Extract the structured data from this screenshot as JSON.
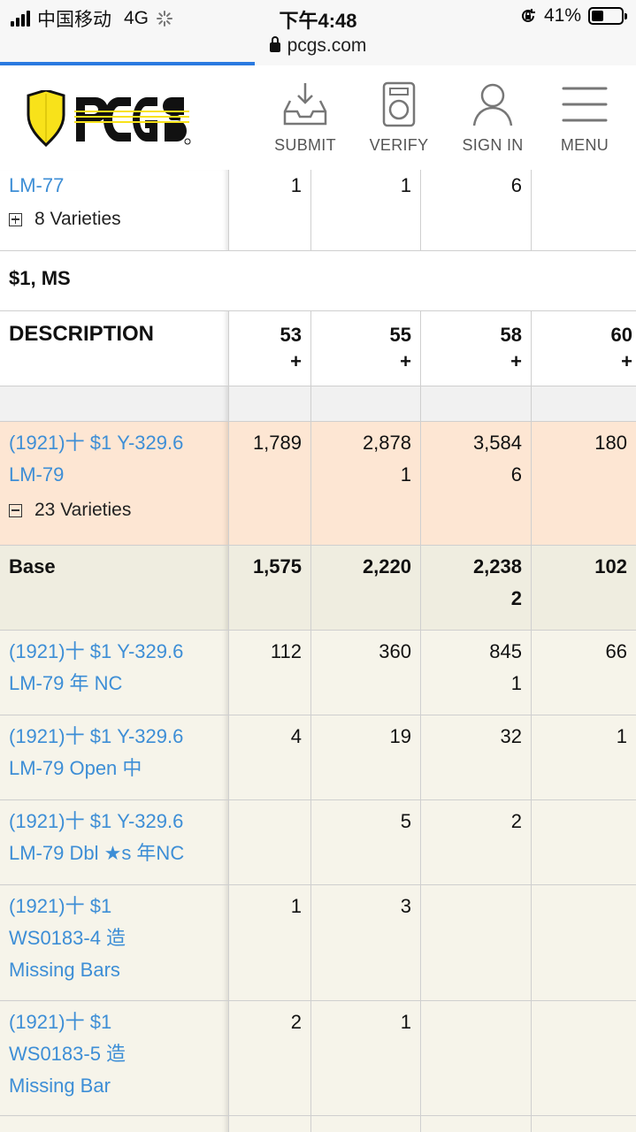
{
  "status_bar": {
    "carrier": "中国移动",
    "network": "4G",
    "time": "下午4:48",
    "battery": "41%",
    "battery_level": 0.41
  },
  "browser": {
    "url": "pcgs.com",
    "load_progress": 0.4
  },
  "header": {
    "logo_text": "PCGS",
    "nav": [
      {
        "label": "SUBMIT",
        "icon": "inbox-download-icon"
      },
      {
        "label": "VERIFY",
        "icon": "coin-slab-icon"
      },
      {
        "label": "SIGN IN",
        "icon": "user-icon"
      },
      {
        "label": "MENU",
        "icon": "hamburger-menu-icon"
      }
    ]
  },
  "prev_section": {
    "row": {
      "desc": "LM-77",
      "values": [
        "1",
        "1",
        "6",
        ""
      ],
      "varieties": "8 Varieties"
    }
  },
  "section": {
    "title": "$1, MS",
    "header": {
      "description": "DESCRIPTION",
      "grades": [
        [
          "53",
          "+"
        ],
        [
          "55",
          "+"
        ],
        [
          "58",
          "+"
        ],
        [
          "60",
          "+"
        ]
      ]
    },
    "rows": [
      {
        "type": "group",
        "desc": [
          "(1921)十 $1 Y-329.6",
          "LM-79"
        ],
        "varieties": "23 Varieties",
        "values": [
          [
            "1,789"
          ],
          [
            "2,878",
            "1"
          ],
          [
            "3,584",
            "6"
          ],
          [
            "180"
          ]
        ]
      },
      {
        "type": "base",
        "desc": [
          "Base"
        ],
        "values": [
          [
            "1,575"
          ],
          [
            "2,220"
          ],
          [
            "2,238",
            "2"
          ],
          [
            "102"
          ]
        ]
      },
      {
        "type": "variety",
        "desc": [
          "(1921)十 $1 Y-329.6",
          "LM-79 年 NC"
        ],
        "values": [
          [
            "112"
          ],
          [
            "360"
          ],
          [
            "845",
            "1"
          ],
          [
            "66"
          ]
        ]
      },
      {
        "type": "variety",
        "desc": [
          "(1921)十 $1 Y-329.6",
          "LM-79 Open 中"
        ],
        "values": [
          [
            "4"
          ],
          [
            "19"
          ],
          [
            "32"
          ],
          [
            "1"
          ]
        ]
      },
      {
        "type": "variety",
        "desc": [
          "(1921)十 $1 Y-329.6",
          "LM-79 Dbl ★s 年NC"
        ],
        "values": [
          [
            ""
          ],
          [
            "5"
          ],
          [
            "2"
          ],
          [
            ""
          ]
        ]
      },
      {
        "type": "variety",
        "desc": [
          "(1921)十 $1",
          "WS0183-4 造",
          "Missing Bars"
        ],
        "values": [
          [
            "1"
          ],
          [
            "3"
          ],
          [
            ""
          ],
          [
            ""
          ]
        ]
      },
      {
        "type": "variety",
        "desc": [
          "(1921)十 $1",
          "WS0183-5 造",
          "Missing Bar"
        ],
        "values": [
          [
            "2"
          ],
          [
            "1"
          ],
          [
            ""
          ],
          [
            ""
          ]
        ]
      }
    ]
  },
  "colors": {
    "link": "#3d8ed6",
    "group_bg": "#fde6d3",
    "base_bg": "#efede0",
    "variety_bg": "#f6f4ea",
    "logo_yellow": "#f8e21a",
    "progress": "#2a7ae0"
  }
}
